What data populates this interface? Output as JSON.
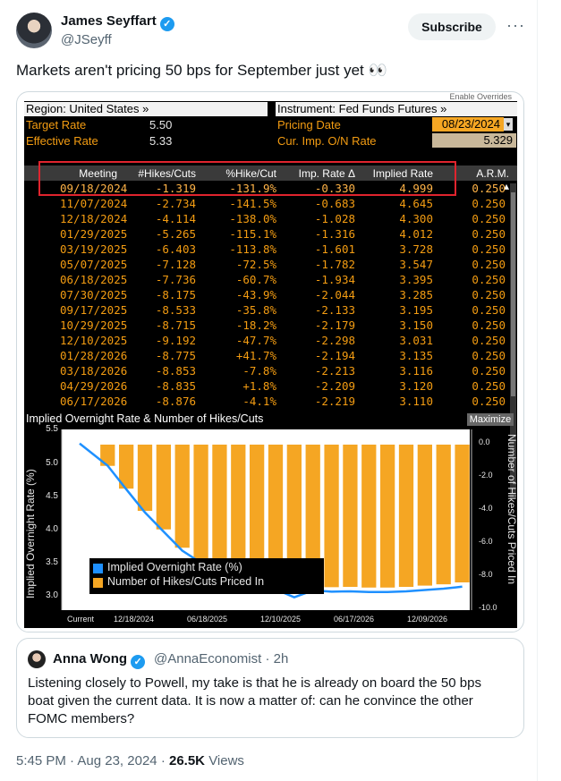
{
  "tweet": {
    "author_name": "James Seyffart",
    "handle": "@JSeyff",
    "subscribe_label": "Subscribe",
    "more_label": "···",
    "text": "Markets aren't pricing 50 bps for September just yet 👀",
    "time": "5:45 PM",
    "date": "Aug 23, 2024",
    "views_count": "26.5K",
    "views_label": "Views",
    "separator": "·"
  },
  "terminal": {
    "enable_overrides": "Enable Overrides",
    "region": "Region: United States »",
    "instrument": "Instrument: Fed Funds Futures »",
    "target_rate_label": "Target Rate",
    "target_rate": "5.50",
    "effective_rate_label": "Effective Rate",
    "effective_rate": "5.33",
    "pricing_date_label": "Pricing Date",
    "pricing_date": "08/23/2024",
    "cur_imp_label": "Cur. Imp. O/N Rate",
    "cur_imp": "5.329",
    "columns": [
      "Meeting",
      "#Hikes/Cuts",
      "%Hike/Cut",
      "Imp. Rate Δ",
      "Implied Rate",
      "A.R.M."
    ],
    "rows": [
      [
        "09/18/2024",
        "-1.319",
        "-131.9%",
        "-0.330",
        "4.999",
        "0.250"
      ],
      [
        "11/07/2024",
        "-2.734",
        "-141.5%",
        "-0.683",
        "4.645",
        "0.250"
      ],
      [
        "12/18/2024",
        "-4.114",
        "-138.0%",
        "-1.028",
        "4.300",
        "0.250"
      ],
      [
        "01/29/2025",
        "-5.265",
        "-115.1%",
        "-1.316",
        "4.012",
        "0.250"
      ],
      [
        "03/19/2025",
        "-6.403",
        "-113.8%",
        "-1.601",
        "3.728",
        "0.250"
      ],
      [
        "05/07/2025",
        "-7.128",
        "-72.5%",
        "-1.782",
        "3.547",
        "0.250"
      ],
      [
        "06/18/2025",
        "-7.736",
        "-60.7%",
        "-1.934",
        "3.395",
        "0.250"
      ],
      [
        "07/30/2025",
        "-8.175",
        "-43.9%",
        "-2.044",
        "3.285",
        "0.250"
      ],
      [
        "09/17/2025",
        "-8.533",
        "-35.8%",
        "-2.133",
        "3.195",
        "0.250"
      ],
      [
        "10/29/2025",
        "-8.715",
        "-18.2%",
        "-2.179",
        "3.150",
        "0.250"
      ],
      [
        "12/10/2025",
        "-9.192",
        "-47.7%",
        "-2.298",
        "3.031",
        "0.250"
      ],
      [
        "01/28/2026",
        "-8.775",
        "+41.7%",
        "-2.194",
        "3.135",
        "0.250"
      ],
      [
        "03/18/2026",
        "-8.853",
        "-7.8%",
        "-2.213",
        "3.116",
        "0.250"
      ],
      [
        "04/29/2026",
        "-8.835",
        "+1.8%",
        "-2.209",
        "3.120",
        "0.250"
      ],
      [
        "06/17/2026",
        "-8.876",
        "-4.1%",
        "-2.219",
        "3.110",
        "0.250"
      ]
    ],
    "chart_title": "Implied Overnight Rate & Number of Hikes/Cuts",
    "maximize_label": "Maximize"
  },
  "chart_data": {
    "type": "bar",
    "title": "Implied Overnight Rate & Number of Hikes/Cuts",
    "ylabel": "Implied Overnight Rate (%)",
    "y2label": "Number of Hikes/Cuts Priced In",
    "ylim": [
      3.0,
      5.5
    ],
    "y2lim": [
      -10.0,
      0.0
    ],
    "yticks": [
      "5.5",
      "5.0",
      "4.5",
      "4.0",
      "3.5",
      "3.0"
    ],
    "y2ticks": [
      "0.0",
      "-2.0",
      "-4.0",
      "-6.0",
      "-8.0",
      "-10.0"
    ],
    "xticks": [
      "Current",
      "12/18/2024",
      "06/18/2025",
      "12/10/2025",
      "06/17/2026",
      "12/09/2026"
    ],
    "legend_position": "lower-left",
    "legend": [
      "Implied Overnight Rate (%)",
      "Number of Hikes/Cuts Priced In"
    ],
    "series": [
      {
        "name": "Implied Overnight Rate (%)",
        "color": "#1e90ff",
        "values": [
          5.329,
          4.999,
          4.645,
          4.3,
          4.012,
          3.728,
          3.547,
          3.395,
          3.285,
          3.195,
          3.15,
          3.031,
          3.135,
          3.116,
          3.12,
          3.11,
          3.11,
          3.12,
          3.14,
          3.16,
          3.19
        ]
      },
      {
        "name": "Number of Hikes/Cuts Priced In",
        "color": "#f5a623",
        "values": [
          0,
          -1.319,
          -2.734,
          -4.114,
          -5.265,
          -6.403,
          -7.128,
          -7.736,
          -8.175,
          -8.533,
          -8.715,
          -9.192,
          -8.775,
          -8.853,
          -8.835,
          -8.876,
          -8.876,
          -8.835,
          -8.755,
          -8.675,
          -8.555
        ]
      }
    ]
  },
  "quote": {
    "author_name": "Anna Wong",
    "handle": "@AnnaEconomist · 2h",
    "text": "Listening closely to Powell, my take is that he is already on board the 50 bps boat given the current data. It is now a matter of: can he convince the other FOMC members?"
  }
}
